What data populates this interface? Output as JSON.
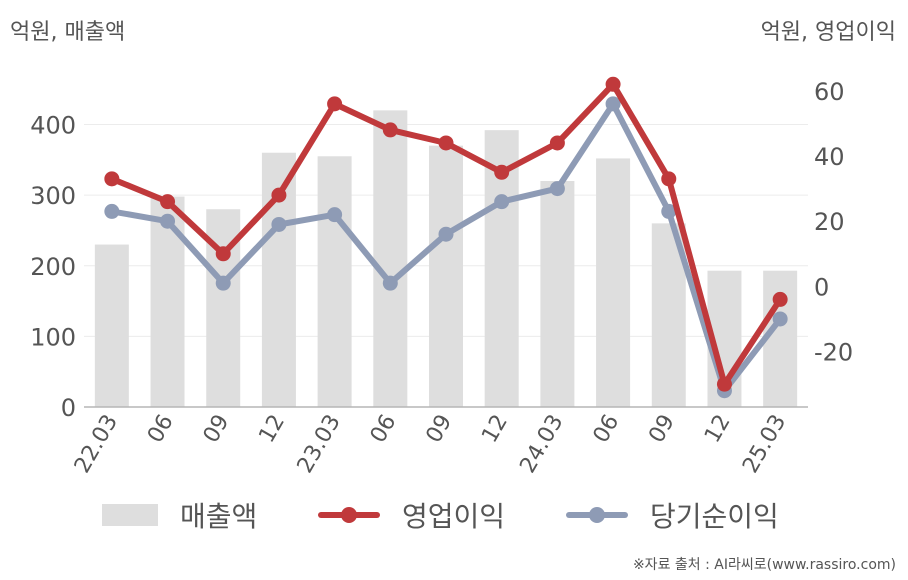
{
  "units": {
    "left": "억원, 매출액",
    "right": "억원, 영업이익"
  },
  "chart_data": {
    "type": "bar+line",
    "categories": [
      "22.03",
      "06",
      "09",
      "12",
      "23.03",
      "06",
      "09",
      "12",
      "24.03",
      "06",
      "09",
      "12",
      "25.03"
    ],
    "left_axis": {
      "ticks": [
        "0",
        "100",
        "200",
        "300",
        "400"
      ],
      "ylim": [
        0,
        480
      ]
    },
    "right_axis": {
      "ticks": [
        "-20",
        "0",
        "20",
        "40",
        "60"
      ],
      "ylim": [
        -37,
        67
      ]
    },
    "series": [
      {
        "name": "매출액",
        "type": "bar",
        "axis": "left",
        "color": "#dedede",
        "values": [
          230,
          298,
          280,
          360,
          355,
          420,
          370,
          392,
          320,
          352,
          260,
          193,
          193
        ]
      },
      {
        "name": "영업이익",
        "type": "line",
        "axis": "right",
        "color": "#c0393b",
        "values": [
          33,
          26,
          10,
          28,
          56,
          48,
          44,
          35,
          44,
          62,
          33,
          -30,
          -4
        ]
      },
      {
        "name": "당기순이익",
        "type": "line",
        "axis": "right",
        "color": "#8e9bb5",
        "values": [
          23,
          20,
          1,
          19,
          22,
          1,
          16,
          26,
          30,
          56,
          23,
          -32,
          -10
        ]
      }
    ],
    "grid": true,
    "legend_position": "bottom"
  },
  "legend": [
    {
      "label": "매출액"
    },
    {
      "label": "영업이익"
    },
    {
      "label": "당기순이익"
    }
  ],
  "source": "※자료 출처 : AI라씨로(www.rassiro.com)"
}
